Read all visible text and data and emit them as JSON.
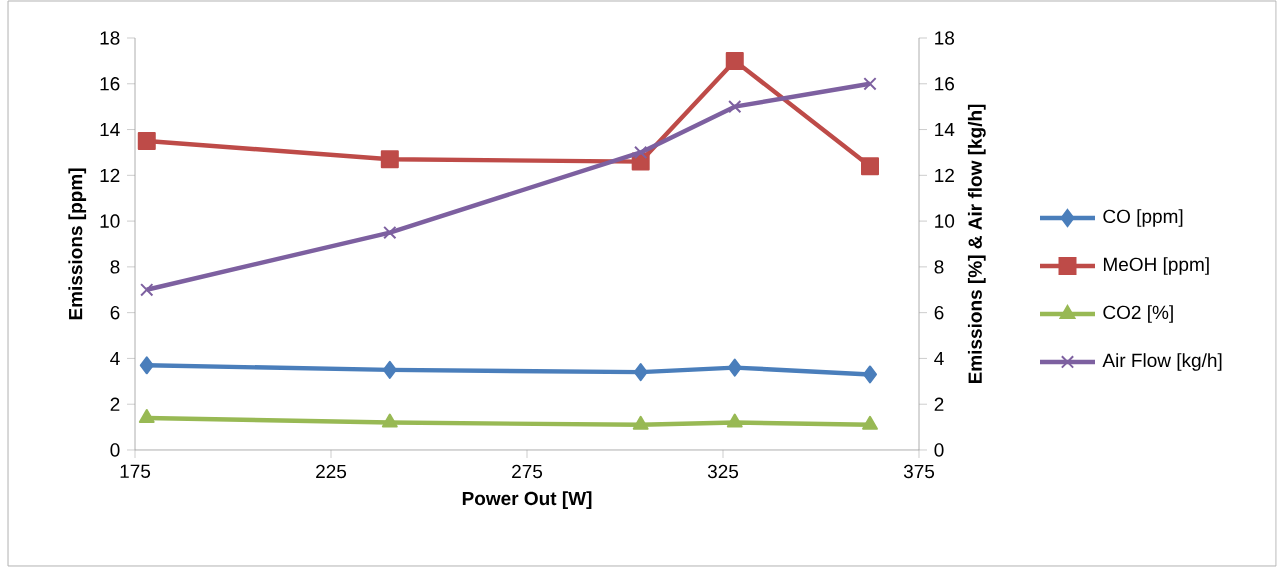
{
  "chart_data": {
    "type": "line",
    "xlabel": "Power Out [W]",
    "ylabel": "Emissions [ppm]",
    "y2label": "Emissions [%] & Air flow [kg/h]",
    "xlim": [
      175,
      375
    ],
    "xticks": [
      175,
      225,
      275,
      325,
      375
    ],
    "ylim": [
      0,
      18
    ],
    "yticks": [
      0,
      2,
      4,
      6,
      8,
      10,
      12,
      14,
      16,
      18
    ],
    "y2lim": [
      0,
      18
    ],
    "y2ticks": [
      0,
      2,
      4,
      6,
      8,
      10,
      12,
      14,
      16,
      18
    ],
    "x": [
      178,
      240,
      304,
      328,
      362.5
    ],
    "grid": false,
    "legend": "right",
    "line_style": "solid",
    "series": [
      {
        "name": "CO [ppm]",
        "color": "#4a7ebb",
        "marker": "diamond",
        "values": [
          3.7,
          3.5,
          3.4,
          3.6,
          3.3
        ]
      },
      {
        "name": "MeOH [ppm]",
        "color": "#be4b48",
        "marker": "square",
        "values": [
          13.5,
          12.7,
          12.6,
          17,
          12.4
        ]
      },
      {
        "name": "CO2 [%]",
        "color": "#98b954",
        "marker": "triangle",
        "axis": "y2",
        "values": [
          1.4,
          1.2,
          1.1,
          1.2,
          1.1
        ]
      },
      {
        "name": "Air Flow [kg/h]",
        "color": "#7d60a0",
        "marker": "cross",
        "axis": "y2",
        "values": [
          7,
          9.5,
          13,
          15,
          16
        ]
      }
    ]
  }
}
